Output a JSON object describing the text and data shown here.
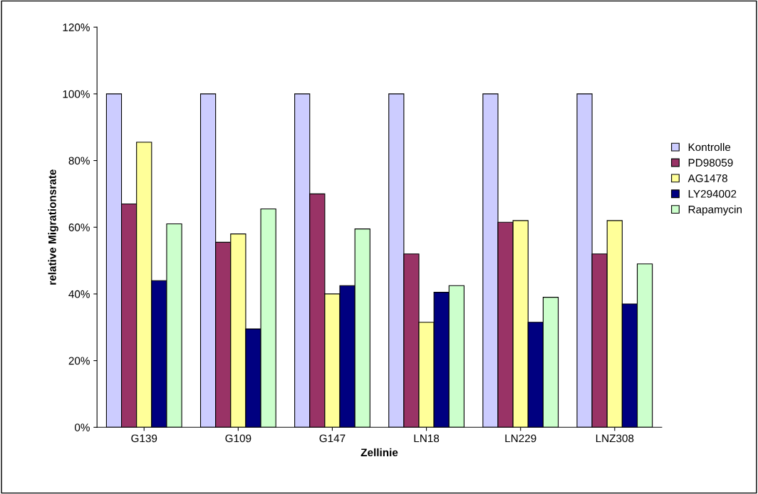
{
  "chart_data": {
    "type": "bar",
    "xlabel": "Zellinie",
    "ylabel": "relative Migrationsrate",
    "categories": [
      "G139",
      "G109",
      "G147",
      "LN18",
      "LN229",
      "LNZ308"
    ],
    "series": [
      {
        "name": "Kontrolle",
        "color": "#ccccff",
        "values": [
          100,
          100,
          100,
          100,
          100,
          100
        ]
      },
      {
        "name": "PD98059",
        "color": "#993366",
        "values": [
          67,
          55.5,
          70,
          52,
          61.5,
          52
        ]
      },
      {
        "name": "AG1478",
        "color": "#ffff99",
        "values": [
          85.5,
          58,
          40,
          31.5,
          62,
          62
        ]
      },
      {
        "name": "LY294002",
        "color": "#000080",
        "values": [
          44,
          29.5,
          42.5,
          40.5,
          31.5,
          37
        ]
      },
      {
        "name": "Rapamycin",
        "color": "#ccffcc",
        "values": [
          61,
          65.5,
          59.5,
          42.5,
          39,
          49
        ]
      }
    ],
    "ylim": [
      0,
      120
    ],
    "yticks": [
      {
        "value": 0,
        "label": "0%"
      },
      {
        "value": 20,
        "label": "20%"
      },
      {
        "value": 40,
        "label": "40%"
      },
      {
        "value": 60,
        "label": "60%"
      },
      {
        "value": 80,
        "label": "80%"
      },
      {
        "value": 100,
        "label": "100%"
      },
      {
        "value": 120,
        "label": "120%"
      }
    ],
    "grid": false,
    "legend": "right"
  }
}
